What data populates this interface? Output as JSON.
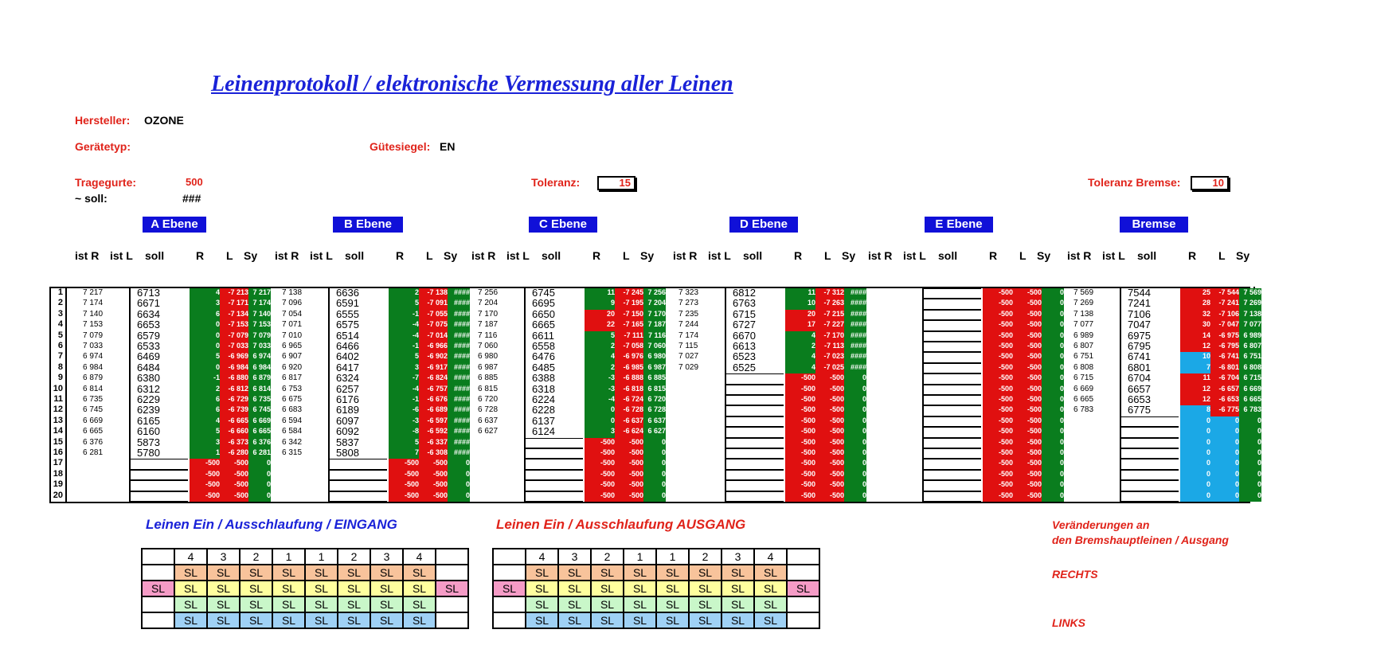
{
  "title": "Leinenprotokoll / elektronische Vermessung aller Leinen",
  "meta": {
    "hersteller_label": "Hersteller:",
    "hersteller": "OZONE",
    "geraetetyp_label": "Gerätetyp:",
    "guetesiegel_label": "Gütesiegel:",
    "guetesiegel": "EN",
    "tragegurte_label": "Tragegurte:",
    "tragegurte": "500",
    "soll_label": "~ soll:",
    "soll": "###",
    "toleranz_label": "Toleranz:",
    "toleranz": "15",
    "toleranz_bremse_label": "Toleranz Bremse:",
    "toleranz_bremse": "10"
  },
  "ebenen": [
    "A Ebene",
    "B Ebene",
    "C Ebene",
    "D Ebene",
    "E Ebene",
    "Bremse"
  ],
  "headers": [
    "ist R",
    "ist L",
    "soll",
    "R",
    "L",
    "Sy"
  ],
  "colors": {
    "green": "#0a7d1e",
    "red": "#e01010",
    "cyan": "#1ba8e6",
    "blue": "#1010d8"
  },
  "rows": [
    "1",
    "2",
    "3",
    "4",
    "5",
    "6",
    "7",
    "8",
    "9",
    "10",
    "11",
    "12",
    "13",
    "14",
    "15",
    "16",
    "17",
    "18",
    "19",
    "20"
  ],
  "groups": [
    {
      "istR": [
        "7 217",
        "7 174",
        "7 140",
        "7 153",
        "7 079",
        "7 033",
        "6 974",
        "6 984",
        "6 879",
        "6 814",
        "6 735",
        "6 745",
        "6 669",
        "6 665",
        "6 376",
        "6 281",
        "",
        "",
        "",
        ""
      ],
      "soll": [
        "6713",
        "6671",
        "6634",
        "6653",
        "6579",
        "6533",
        "6469",
        "6484",
        "6380",
        "6312",
        "6229",
        "6239",
        "6165",
        "6160",
        "5873",
        "5780",
        "",
        "",
        "",
        ""
      ],
      "R": [
        "4",
        "3",
        "6",
        "0",
        "0",
        "0",
        "5",
        "0",
        "-1",
        "2",
        "6",
        "6",
        "4",
        "5",
        "3",
        "1",
        "-500",
        "-500",
        "-500",
        "-500"
      ],
      "L": [
        "-7 213",
        "-7 171",
        "-7 134",
        "-7 153",
        "-7 079",
        "-7 033",
        "-6 969",
        "-6 984",
        "-6 880",
        "-6 812",
        "-6 729",
        "-6 739",
        "-6 665",
        "-6 660",
        "-6 373",
        "-6 280",
        "-500",
        "-500",
        "-500",
        "-500"
      ],
      "Sy": [
        "7 217",
        "7 174",
        "7 140",
        "7 153",
        "7 079",
        "7 033",
        "6 974",
        "6 984",
        "6 879",
        "6 814",
        "6 735",
        "6 745",
        "6 669",
        "6 665",
        "6 376",
        "6 281",
        "0",
        "0",
        "0",
        "0"
      ]
    },
    {
      "istR": [
        "7 138",
        "7 096",
        "7 054",
        "7 071",
        "7 010",
        "6 965",
        "6 907",
        "6 920",
        "6 817",
        "6 753",
        "6 675",
        "6 683",
        "6 594",
        "6 584",
        "6 342",
        "6 315",
        "",
        "",
        "",
        ""
      ],
      "soll": [
        "6636",
        "6591",
        "6555",
        "6575",
        "6514",
        "6466",
        "6402",
        "6417",
        "6324",
        "6257",
        "6176",
        "6189",
        "6097",
        "6092",
        "5837",
        "5808",
        "",
        "",
        "",
        ""
      ],
      "R": [
        "2",
        "5",
        "-1",
        "-4",
        "-4",
        "-1",
        "5",
        "3",
        "-7",
        "-4",
        "-1",
        "-6",
        "-3",
        "-8",
        "5",
        "7",
        "-500",
        "-500",
        "-500",
        "-500"
      ],
      "L": [
        "-7 138",
        "-7 091",
        "-7 055",
        "-7 075",
        "-7 014",
        "-6 966",
        "-6 902",
        "-6 917",
        "-6 824",
        "-6 757",
        "-6 676",
        "-6 689",
        "-6 597",
        "-6 592",
        "-6 337",
        "-6 308",
        "-500",
        "-500",
        "-500",
        "-500"
      ],
      "Sy": [
        "####",
        "####",
        "####",
        "####",
        "####",
        "####",
        "####",
        "####",
        "####",
        "####",
        "####",
        "####",
        "####",
        "####",
        "####",
        "####",
        "0",
        "0",
        "0",
        "0"
      ]
    },
    {
      "istR": [
        "7 256",
        "7 204",
        "7 170",
        "7 187",
        "7 116",
        "7 060",
        "6 980",
        "6 987",
        "6 885",
        "6 815",
        "6 720",
        "6 728",
        "6 637",
        "6 627",
        "",
        "",
        "",
        "",
        "",
        ""
      ],
      "soll": [
        "6745",
        "6695",
        "6650",
        "6665",
        "6611",
        "6558",
        "6476",
        "6485",
        "6388",
        "6318",
        "6224",
        "6228",
        "6137",
        "6124",
        "",
        "",
        "",
        "",
        "",
        ""
      ],
      "R": [
        "11",
        "9",
        "20",
        "22",
        "5",
        "2",
        "4",
        "2",
        "-3",
        "-3",
        "-4",
        "0",
        "0",
        "3",
        "-500",
        "-500",
        "-500",
        "-500",
        "-500",
        "-500"
      ],
      "L": [
        "-7 245",
        "-7 195",
        "-7 150",
        "-7 165",
        "-7 111",
        "-7 058",
        "-6 976",
        "-6 985",
        "-6 888",
        "-6 818",
        "-6 724",
        "-6 728",
        "-6 637",
        "-6 624",
        "-500",
        "-500",
        "-500",
        "-500",
        "-500",
        "-500"
      ],
      "Sy": [
        "7 256",
        "7 204",
        "7 170",
        "7 187",
        "7 116",
        "7 060",
        "6 980",
        "6 987",
        "6 885",
        "6 815",
        "6 720",
        "6 728",
        "6 637",
        "6 627",
        "0",
        "0",
        "0",
        "0",
        "0",
        "0"
      ]
    },
    {
      "istR": [
        "7 323",
        "7 273",
        "7 235",
        "7 244",
        "7 174",
        "7 115",
        "7 027",
        "7 029",
        "",
        "",
        "",
        "",
        "",
        "",
        "",
        "",
        "",
        "",
        "",
        ""
      ],
      "soll": [
        "6812",
        "6763",
        "6715",
        "6727",
        "6670",
        "6613",
        "6523",
        "6525",
        "",
        "",
        "",
        "",
        "",
        "",
        "",
        "",
        "",
        "",
        "",
        ""
      ],
      "R": [
        "11",
        "10",
        "20",
        "17",
        "4",
        "2",
        "4",
        "4",
        "-500",
        "-500",
        "-500",
        "-500",
        "-500",
        "-500",
        "-500",
        "-500",
        "-500",
        "-500",
        "-500",
        "-500"
      ],
      "L": [
        "-7 312",
        "-7 263",
        "-7 215",
        "-7 227",
        "-7 170",
        "-7 113",
        "-7 023",
        "-7 025",
        "-500",
        "-500",
        "-500",
        "-500",
        "-500",
        "-500",
        "-500",
        "-500",
        "-500",
        "-500",
        "-500",
        "-500"
      ],
      "Sy": [
        "####",
        "####",
        "####",
        "####",
        "####",
        "####",
        "####",
        "####",
        "0",
        "0",
        "0",
        "0",
        "0",
        "0",
        "0",
        "0",
        "0",
        "0",
        "0",
        "0"
      ]
    },
    {
      "istR": [
        "",
        "",
        "",
        "",
        "",
        "",
        "",
        "",
        "",
        "",
        "",
        "",
        "",
        "",
        "",
        "",
        "",
        "",
        "",
        ""
      ],
      "soll": [
        "",
        "",
        "",
        "",
        "",
        "",
        "",
        "",
        "",
        "",
        "",
        "",
        "",
        "",
        "",
        "",
        "",
        "",
        "",
        ""
      ],
      "R": [
        "-500",
        "-500",
        "-500",
        "-500",
        "-500",
        "-500",
        "-500",
        "-500",
        "-500",
        "-500",
        "-500",
        "-500",
        "-500",
        "-500",
        "-500",
        "-500",
        "-500",
        "-500",
        "-500",
        "-500"
      ],
      "L": [
        "-500",
        "-500",
        "-500",
        "-500",
        "-500",
        "-500",
        "-500",
        "-500",
        "-500",
        "-500",
        "-500",
        "-500",
        "-500",
        "-500",
        "-500",
        "-500",
        "-500",
        "-500",
        "-500",
        "-500"
      ],
      "Sy": [
        "0",
        "0",
        "0",
        "0",
        "0",
        "0",
        "0",
        "0",
        "0",
        "0",
        "0",
        "0",
        "0",
        "0",
        "0",
        "0",
        "0",
        "0",
        "0",
        "0"
      ]
    },
    {
      "istR": [
        "7 569",
        "7 269",
        "7 138",
        "7 077",
        "6 989",
        "6 807",
        "6 751",
        "6 808",
        "6 715",
        "6 669",
        "6 665",
        "6 783",
        "",
        "",
        "",
        "",
        "",
        "",
        "",
        ""
      ],
      "soll": [
        "7544",
        "7241",
        "7106",
        "7047",
        "6975",
        "6795",
        "6741",
        "6801",
        "6704",
        "6657",
        "6653",
        "6775",
        "",
        "",
        "",
        "",
        "",
        "",
        "",
        ""
      ],
      "R": [
        "25",
        "28",
        "32",
        "30",
        "14",
        "12",
        "10",
        "7",
        "11",
        "12",
        "12",
        "8",
        "0",
        "0",
        "0",
        "0",
        "0",
        "0",
        "0",
        "0"
      ],
      "L": [
        "-7 544",
        "-7 241",
        "-7 106",
        "-7 047",
        "-6 975",
        "-6 795",
        "-6 741",
        "-6 801",
        "-6 704",
        "-6 657",
        "-6 653",
        "-6 775",
        "0",
        "0",
        "0",
        "0",
        "0",
        "0",
        "0",
        "0"
      ],
      "Sy": [
        "7 569",
        "7 269",
        "7 138",
        "7 077",
        "6 989",
        "6 807",
        "6 751",
        "6 808",
        "6 715",
        "6 669",
        "6 665",
        "6 783",
        "0",
        "0",
        "0",
        "0",
        "0",
        "0",
        "0",
        "0"
      ]
    }
  ],
  "eingang_title": "Leinen Ein / Ausschlaufung / EINGANG",
  "ausgang_title": "Leinen Ein / Ausschlaufung AUSGANG",
  "sl_numbers": [
    "4",
    "3",
    "2",
    "1",
    "1",
    "2",
    "3",
    "4"
  ],
  "sl_label": "SL",
  "veraenderungen_line1": "Veränderungen an",
  "veraenderungen_line2": "den Bremshauptleinen / Ausgang",
  "rechts": "RECHTS",
  "links": "LINKS"
}
